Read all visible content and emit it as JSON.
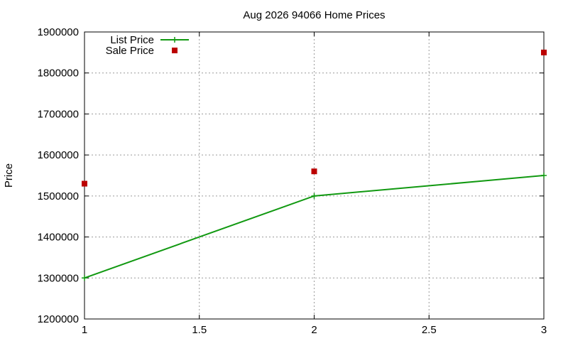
{
  "chart_data": {
    "type": "line",
    "title": "Aug 2026 94066 Home Prices",
    "xlabel": "",
    "ylabel": "Price",
    "xlim": [
      1,
      3
    ],
    "ylim": [
      1200000,
      1900000
    ],
    "x_ticks": [
      1,
      1.5,
      2,
      2.5,
      3
    ],
    "x_tick_labels": [
      "1",
      "1.5",
      "2",
      "2.5",
      "3"
    ],
    "y_ticks": [
      1200000,
      1300000,
      1400000,
      1500000,
      1600000,
      1700000,
      1800000,
      1900000
    ],
    "y_tick_labels": [
      "1200000",
      "1300000",
      "1400000",
      "1500000",
      "1600000",
      "1700000",
      "1800000",
      "1900000"
    ],
    "grid": true,
    "legend_position": "top-left",
    "series": [
      {
        "name": "List Price",
        "style": "line-with-plus-markers",
        "color": "#119911",
        "x": [
          1,
          2,
          3
        ],
        "y": [
          1300000,
          1500000,
          1550000
        ]
      },
      {
        "name": "Sale Price",
        "style": "square-points",
        "color": "#bb0000",
        "x": [
          1,
          2,
          3
        ],
        "y": [
          1530000,
          1560000,
          1850000
        ]
      }
    ]
  }
}
